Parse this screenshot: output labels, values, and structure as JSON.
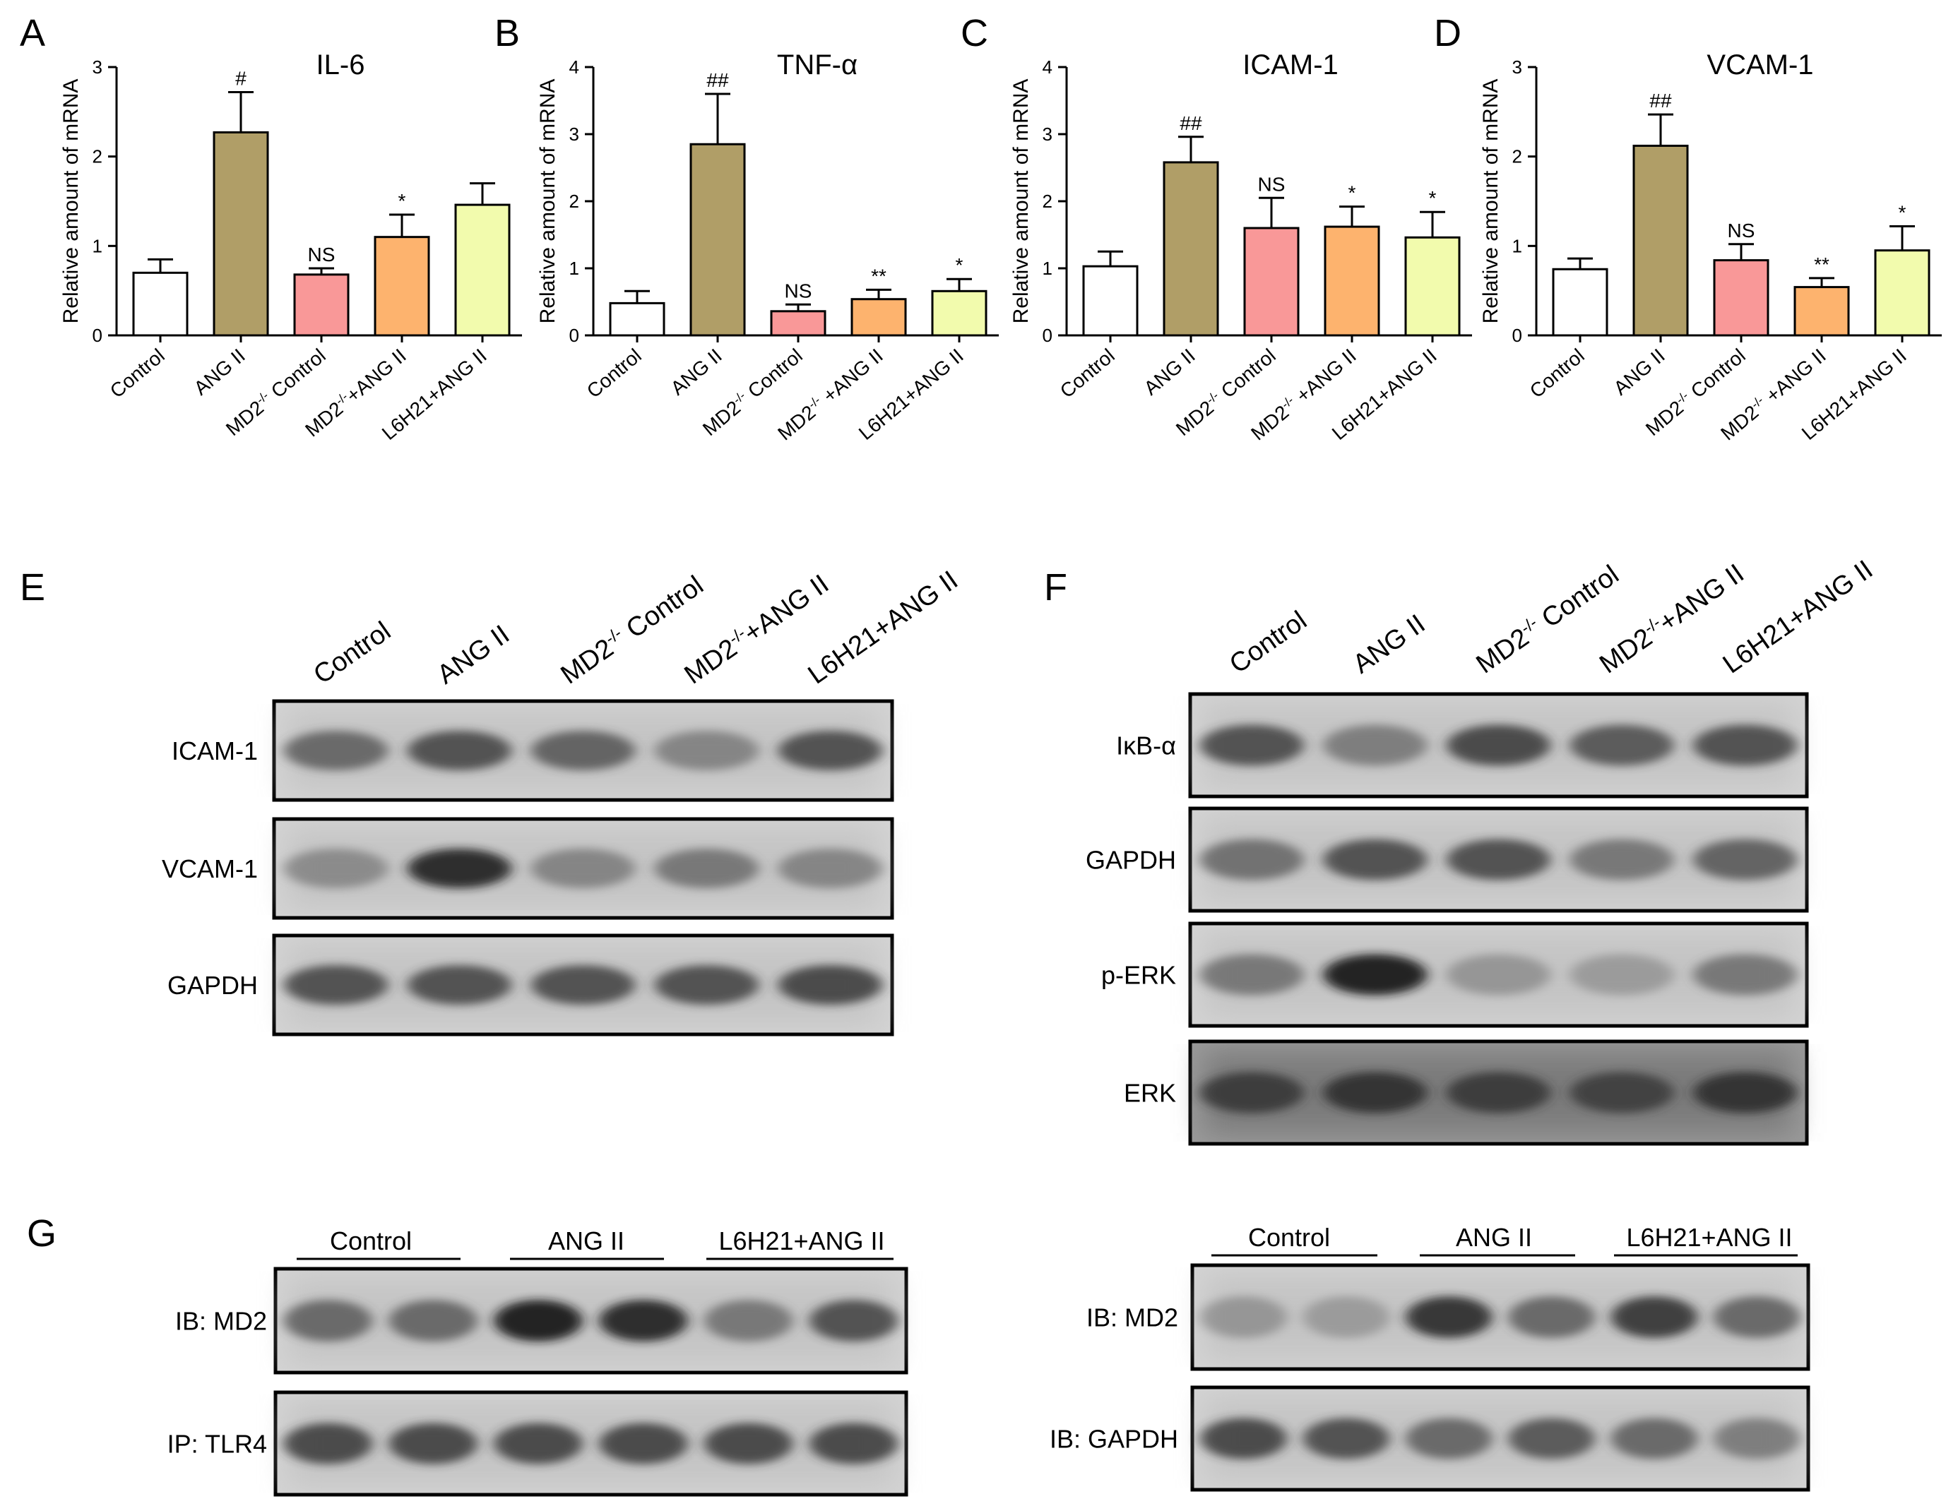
{
  "ylabel": "Relative amount of mRNA",
  "bar_colors": [
    "#ffffff",
    "#b09e67",
    "#f99898",
    "#fdb36e",
    "#f2fbad"
  ],
  "chart_data": [
    {
      "type": "bar",
      "panel": "A",
      "title": "IL-6",
      "ylabel": "Relative amount of mRNA",
      "ylim": [
        0,
        3
      ],
      "yticks": [
        0,
        1,
        2,
        3
      ],
      "categories": [
        "Control",
        "ANG II",
        "MD2-/- Control",
        "MD2-/-+ANG II",
        "L6H21+ANG II"
      ],
      "category_labels": [
        {
          "main": "Control",
          "sup": "",
          "rest": ""
        },
        {
          "main": "ANG II",
          "sup": "",
          "rest": ""
        },
        {
          "main": "MD2",
          "sup": "-/-",
          "rest": " Control"
        },
        {
          "main": "MD2",
          "sup": "-/-",
          "rest": "+ANG II"
        },
        {
          "main": "L6H21+ANG II",
          "sup": "",
          "rest": ""
        }
      ],
      "values": [
        0.7,
        2.27,
        0.68,
        1.1,
        1.46
      ],
      "errors": [
        0.15,
        0.45,
        0.07,
        0.25,
        0.24
      ],
      "annotations": [
        "",
        "#",
        "NS",
        "*",
        ""
      ]
    },
    {
      "type": "bar",
      "panel": "B",
      "title": "TNF-α",
      "ylabel": "Relative amount of mRNA",
      "ylim": [
        0,
        4
      ],
      "yticks": [
        0,
        1,
        2,
        3,
        4
      ],
      "categories": [
        "Control",
        "ANG II",
        "MD2-/- Control",
        "MD2-/- +ANG II",
        "L6H21+ANG II"
      ],
      "category_labels": [
        {
          "main": "Control",
          "sup": "",
          "rest": ""
        },
        {
          "main": "ANG II",
          "sup": "",
          "rest": ""
        },
        {
          "main": "MD2",
          "sup": "-/-",
          "rest": " Control"
        },
        {
          "main": "MD2",
          "sup": "-/-",
          "rest": " +ANG II"
        },
        {
          "main": "L6H21+ANG II",
          "sup": "",
          "rest": ""
        }
      ],
      "values": [
        0.48,
        2.85,
        0.36,
        0.54,
        0.66
      ],
      "errors": [
        0.18,
        0.75,
        0.1,
        0.14,
        0.18
      ],
      "annotations": [
        "",
        "##",
        "NS",
        "**",
        "*"
      ]
    },
    {
      "type": "bar",
      "panel": "C",
      "title": "ICAM-1",
      "ylabel": "Relative amount of mRNA",
      "ylim": [
        0,
        4
      ],
      "yticks": [
        0,
        1,
        2,
        3,
        4
      ],
      "categories": [
        "Control",
        "ANG II",
        "MD2-/- Control",
        "MD2-/- +ANG II",
        "L6H21+ANG II"
      ],
      "category_labels": [
        {
          "main": "Control",
          "sup": "",
          "rest": ""
        },
        {
          "main": "ANG II",
          "sup": "",
          "rest": ""
        },
        {
          "main": "MD2",
          "sup": "-/-",
          "rest": " Control"
        },
        {
          "main": "MD2",
          "sup": "-/-",
          "rest": " +ANG II"
        },
        {
          "main": "L6H21+ANG II",
          "sup": "",
          "rest": ""
        }
      ],
      "values": [
        1.03,
        2.58,
        1.6,
        1.62,
        1.46
      ],
      "errors": [
        0.22,
        0.38,
        0.45,
        0.3,
        0.38
      ],
      "annotations": [
        "",
        "##",
        "NS",
        "*",
        "*"
      ]
    },
    {
      "type": "bar",
      "panel": "D",
      "title": "VCAM-1",
      "ylabel": "Relative amount of mRNA",
      "ylim": [
        0,
        3
      ],
      "yticks": [
        0,
        1,
        2,
        3
      ],
      "categories": [
        "Control",
        "ANG II",
        "MD2-/- Control",
        "MD2-/- +ANG II",
        "L6H21+ANG II"
      ],
      "category_labels": [
        {
          "main": "Control",
          "sup": "",
          "rest": ""
        },
        {
          "main": "ANG II",
          "sup": "",
          "rest": ""
        },
        {
          "main": "MD2",
          "sup": "-/-",
          "rest": " Control"
        },
        {
          "main": "MD2",
          "sup": "-/-",
          "rest": " +ANG II"
        },
        {
          "main": "L6H21+ANG II",
          "sup": "",
          "rest": ""
        }
      ],
      "values": [
        0.74,
        2.12,
        0.84,
        0.54,
        0.95
      ],
      "errors": [
        0.12,
        0.35,
        0.18,
        0.1,
        0.27
      ],
      "annotations": [
        "",
        "##",
        "NS",
        "**",
        "*"
      ]
    }
  ],
  "blots": {
    "E": {
      "letter": "E",
      "lanes": [
        {
          "main": "Control",
          "sup": "",
          "rest": ""
        },
        {
          "main": "ANG II",
          "sup": "",
          "rest": ""
        },
        {
          "main": "MD2",
          "sup": "-/-",
          "rest": " Control"
        },
        {
          "main": "MD2",
          "sup": "-/-",
          "rest": "+ANG II"
        },
        {
          "main": "L6H21+ANG II",
          "sup": "",
          "rest": ""
        }
      ],
      "rows": [
        {
          "label": "ICAM-1",
          "intensity": [
            0.55,
            0.7,
            0.6,
            0.35,
            0.7
          ]
        },
        {
          "label": "VCAM-1",
          "intensity": [
            0.3,
            0.9,
            0.35,
            0.45,
            0.35
          ]
        },
        {
          "label": "GAPDH",
          "intensity": [
            0.7,
            0.7,
            0.7,
            0.7,
            0.75
          ]
        }
      ]
    },
    "F": {
      "letter": "F",
      "lanes": [
        {
          "main": "Control",
          "sup": "",
          "rest": ""
        },
        {
          "main": "ANG II",
          "sup": "",
          "rest": ""
        },
        {
          "main": "MD2",
          "sup": "-/-",
          "rest": " Control"
        },
        {
          "main": "MD2",
          "sup": "-/-",
          "rest": "+ANG II"
        },
        {
          "main": "L6H21+ANG II",
          "sup": "",
          "rest": ""
        }
      ],
      "rows": [
        {
          "label": "IκB-α",
          "intensity": [
            0.7,
            0.4,
            0.75,
            0.65,
            0.7
          ]
        },
        {
          "label": "GAPDH",
          "intensity": [
            0.5,
            0.7,
            0.7,
            0.45,
            0.6
          ]
        },
        {
          "label": "p-ERK",
          "intensity": [
            0.45,
            0.95,
            0.2,
            0.15,
            0.45
          ]
        },
        {
          "label": "ERK",
          "intensity": [
            0.75,
            0.8,
            0.75,
            0.7,
            0.8
          ]
        }
      ]
    },
    "G_left": {
      "letter": "G",
      "groups": [
        "Control",
        "ANG II",
        "L6H21+ANG II"
      ],
      "rows": [
        {
          "label": "IB: MD2",
          "intensity": [
            0.55,
            0.55,
            0.95,
            0.9,
            0.45,
            0.7
          ]
        },
        {
          "label": "IP: TLR4",
          "intensity": [
            0.75,
            0.75,
            0.75,
            0.75,
            0.75,
            0.75
          ]
        }
      ]
    },
    "G_right": {
      "groups": [
        "Control",
        "ANG II",
        "L6H21+ANG II"
      ],
      "rows": [
        {
          "label": "IB: MD2",
          "intensity": [
            0.2,
            0.15,
            0.85,
            0.55,
            0.8,
            0.55
          ]
        },
        {
          "label": "IB: GAPDH",
          "intensity": [
            0.75,
            0.7,
            0.55,
            0.65,
            0.55,
            0.4
          ]
        }
      ]
    }
  }
}
